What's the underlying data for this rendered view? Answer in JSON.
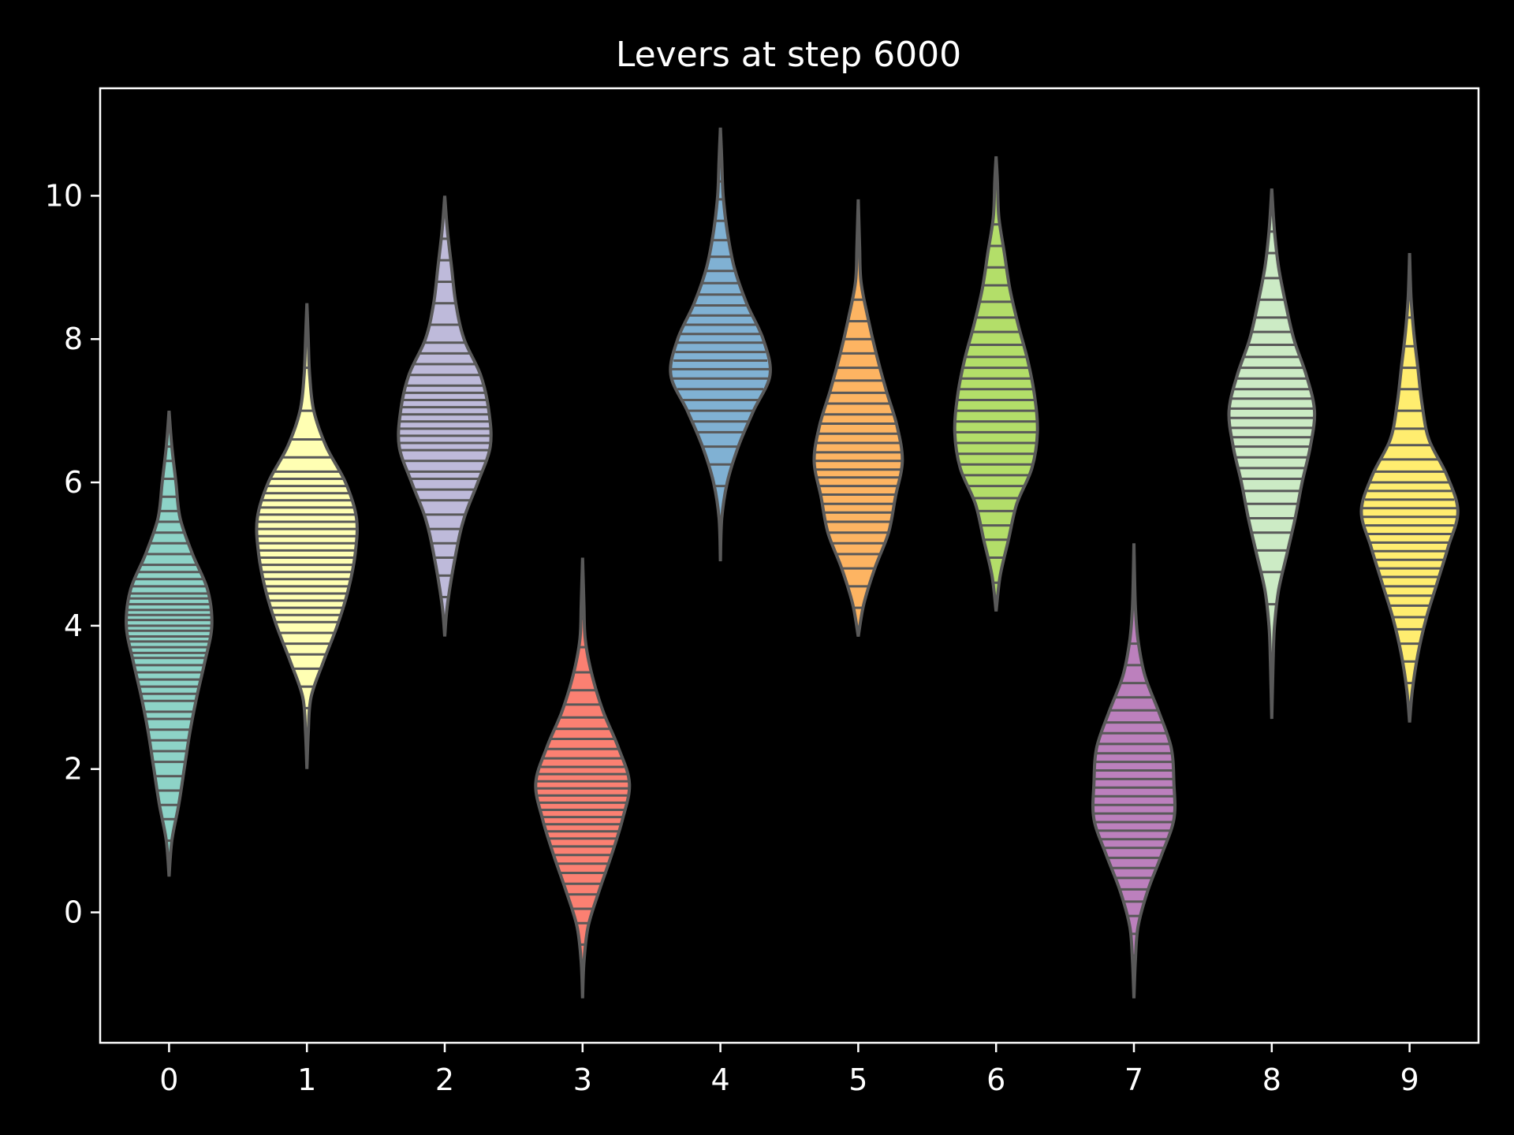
{
  "chart_data": {
    "type": "violin",
    "title": "Levers at step 6000",
    "xlabel": "",
    "ylabel": "",
    "ylim": [
      -1.82,
      11.5
    ],
    "yticks": [
      0,
      2,
      4,
      6,
      8,
      10
    ],
    "categories": [
      "0",
      "1",
      "2",
      "3",
      "4",
      "5",
      "6",
      "7",
      "8",
      "9"
    ],
    "grid": false,
    "legend": "none",
    "background": "#000000",
    "axis_color": "#ffffff",
    "body_color": "#595959",
    "colors": [
      "#8dd3c7",
      "#ffffb3",
      "#bebada",
      "#fb8072",
      "#80b1d3",
      "#fdb462",
      "#b3de69",
      "#bc80bd",
      "#ccebc5",
      "#ffed6f"
    ],
    "series": [
      {
        "category": "0",
        "min": 0.5,
        "max": 7.0,
        "profile": [
          [
            0.5,
            0
          ],
          [
            1.0,
            0.02
          ],
          [
            1.5,
            0.07
          ],
          [
            2.0,
            0.11
          ],
          [
            2.5,
            0.15
          ],
          [
            3.0,
            0.2
          ],
          [
            3.5,
            0.26
          ],
          [
            4.0,
            0.31
          ],
          [
            4.5,
            0.28
          ],
          [
            5.0,
            0.17
          ],
          [
            5.5,
            0.08
          ],
          [
            6.0,
            0.05
          ],
          [
            6.5,
            0.02
          ],
          [
            7.0,
            0
          ]
        ],
        "samples": [
          1.0,
          1.3,
          1.5,
          1.7,
          1.9,
          2.1,
          2.25,
          2.4,
          2.55,
          2.7,
          2.8,
          2.95,
          3.05,
          3.15,
          3.25,
          3.35,
          3.45,
          3.55,
          3.62,
          3.7,
          3.78,
          3.85,
          3.93,
          4.0,
          4.08,
          4.15,
          4.22,
          4.3,
          4.38,
          4.45,
          4.55,
          4.65,
          4.75,
          4.85,
          5.0,
          5.15,
          5.3,
          5.45,
          5.6,
          5.8,
          6.05,
          6.3,
          6.5
        ]
      },
      {
        "category": "1",
        "min": 2.0,
        "max": 8.5,
        "profile": [
          [
            2.0,
            0
          ],
          [
            2.5,
            0.01
          ],
          [
            3.0,
            0.03
          ],
          [
            3.5,
            0.12
          ],
          [
            4.0,
            0.22
          ],
          [
            4.5,
            0.3
          ],
          [
            5.0,
            0.35
          ],
          [
            5.5,
            0.36
          ],
          [
            6.0,
            0.28
          ],
          [
            6.5,
            0.14
          ],
          [
            7.0,
            0.05
          ],
          [
            7.5,
            0.02
          ],
          [
            8.0,
            0.01
          ],
          [
            8.5,
            0
          ]
        ],
        "samples": [
          2.85,
          3.15,
          3.4,
          3.6,
          3.75,
          3.9,
          4.05,
          4.15,
          4.25,
          4.35,
          4.45,
          4.55,
          4.65,
          4.75,
          4.85,
          4.95,
          5.05,
          5.15,
          5.25,
          5.35,
          5.45,
          5.55,
          5.65,
          5.75,
          5.85,
          5.95,
          6.05,
          6.15,
          6.35,
          6.6,
          7.0,
          7.6
        ]
      },
      {
        "category": "2",
        "min": 3.85,
        "max": 10.0,
        "profile": [
          [
            3.85,
            0
          ],
          [
            4.3,
            0.02
          ],
          [
            5.0,
            0.08
          ],
          [
            5.5,
            0.14
          ],
          [
            6.0,
            0.24
          ],
          [
            6.5,
            0.33
          ],
          [
            7.0,
            0.32
          ],
          [
            7.5,
            0.26
          ],
          [
            8.0,
            0.14
          ],
          [
            8.5,
            0.08
          ],
          [
            9.0,
            0.05
          ],
          [
            9.5,
            0.02
          ],
          [
            10.0,
            0
          ]
        ],
        "samples": [
          4.4,
          4.7,
          4.95,
          5.15,
          5.35,
          5.55,
          5.75,
          5.9,
          6.05,
          6.15,
          6.3,
          6.45,
          6.55,
          6.65,
          6.75,
          6.85,
          6.95,
          7.05,
          7.15,
          7.25,
          7.35,
          7.5,
          7.65,
          7.8,
          7.95,
          8.2,
          8.5,
          8.8,
          9.1,
          9.4
        ]
      },
      {
        "category": "3",
        "min": -1.2,
        "max": 4.95,
        "profile": [
          [
            -1.2,
            0
          ],
          [
            -0.7,
            0.01
          ],
          [
            -0.2,
            0.04
          ],
          [
            0.3,
            0.12
          ],
          [
            0.8,
            0.21
          ],
          [
            1.3,
            0.29
          ],
          [
            1.8,
            0.34
          ],
          [
            2.3,
            0.26
          ],
          [
            2.8,
            0.15
          ],
          [
            3.3,
            0.07
          ],
          [
            3.8,
            0.02
          ],
          [
            4.3,
            0.01
          ],
          [
            4.95,
            0
          ]
        ],
        "samples": [
          -0.45,
          -0.15,
          0.05,
          0.25,
          0.4,
          0.55,
          0.68,
          0.8,
          0.92,
          1.03,
          1.13,
          1.23,
          1.33,
          1.43,
          1.53,
          1.63,
          1.73,
          1.83,
          1.93,
          2.03,
          2.15,
          2.28,
          2.42,
          2.56,
          2.72,
          2.9,
          3.1,
          3.35,
          3.7,
          4.1,
          4.45
        ]
      },
      {
        "category": "4",
        "min": 4.9,
        "max": 10.95,
        "profile": [
          [
            4.9,
            0
          ],
          [
            5.5,
            0.01
          ],
          [
            6.0,
            0.05
          ],
          [
            6.5,
            0.13
          ],
          [
            7.0,
            0.24
          ],
          [
            7.5,
            0.36
          ],
          [
            8.0,
            0.31
          ],
          [
            8.5,
            0.19
          ],
          [
            9.0,
            0.1
          ],
          [
            9.5,
            0.05
          ],
          [
            10.0,
            0.02
          ],
          [
            10.5,
            0.01
          ],
          [
            10.95,
            0
          ]
        ],
        "samples": [
          5.5,
          5.95,
          6.25,
          6.5,
          6.7,
          6.85,
          7.0,
          7.15,
          7.3,
          7.45,
          7.58,
          7.7,
          7.82,
          7.95,
          8.07,
          8.2,
          8.33,
          8.47,
          8.62,
          8.78,
          8.95,
          9.15,
          9.38,
          9.65,
          9.95,
          10.2
        ]
      },
      {
        "category": "5",
        "min": 3.85,
        "max": 9.95,
        "profile": [
          [
            3.85,
            0
          ],
          [
            4.3,
            0.04
          ],
          [
            4.8,
            0.12
          ],
          [
            5.3,
            0.22
          ],
          [
            5.8,
            0.27
          ],
          [
            6.3,
            0.32
          ],
          [
            6.8,
            0.28
          ],
          [
            7.3,
            0.2
          ],
          [
            7.8,
            0.13
          ],
          [
            8.3,
            0.07
          ],
          [
            8.8,
            0.02
          ],
          [
            9.3,
            0.01
          ],
          [
            9.95,
            0
          ]
        ],
        "samples": [
          4.25,
          4.55,
          4.8,
          5.0,
          5.15,
          5.3,
          5.45,
          5.58,
          5.7,
          5.83,
          5.95,
          6.07,
          6.18,
          6.3,
          6.42,
          6.55,
          6.68,
          6.82,
          6.95,
          7.1,
          7.25,
          7.42,
          7.6,
          7.8,
          8.0,
          8.25,
          8.55
        ]
      },
      {
        "category": "6",
        "min": 4.2,
        "max": 10.55,
        "profile": [
          [
            4.2,
            0
          ],
          [
            4.7,
            0.03
          ],
          [
            5.2,
            0.09
          ],
          [
            5.7,
            0.15
          ],
          [
            6.2,
            0.26
          ],
          [
            6.7,
            0.3
          ],
          [
            7.2,
            0.28
          ],
          [
            7.7,
            0.23
          ],
          [
            8.2,
            0.16
          ],
          [
            8.7,
            0.1
          ],
          [
            9.2,
            0.06
          ],
          [
            9.7,
            0.02
          ],
          [
            10.2,
            0.01
          ],
          [
            10.55,
            0
          ]
        ],
        "samples": [
          4.6,
          4.95,
          5.2,
          5.4,
          5.6,
          5.78,
          5.95,
          6.1,
          6.25,
          6.4,
          6.55,
          6.7,
          6.85,
          7.0,
          7.15,
          7.3,
          7.45,
          7.6,
          7.75,
          7.92,
          8.1,
          8.3,
          8.52,
          8.75,
          9.0,
          9.3,
          9.6
        ]
      },
      {
        "category": "7",
        "min": -1.2,
        "max": 5.15,
        "profile": [
          [
            -1.2,
            0
          ],
          [
            -0.7,
            0.01
          ],
          [
            -0.2,
            0.03
          ],
          [
            0.3,
            0.1
          ],
          [
            0.8,
            0.2
          ],
          [
            1.3,
            0.29
          ],
          [
            1.8,
            0.29
          ],
          [
            2.3,
            0.27
          ],
          [
            2.8,
            0.18
          ],
          [
            3.3,
            0.08
          ],
          [
            3.8,
            0.03
          ],
          [
            4.3,
            0.01
          ],
          [
            5.15,
            0
          ]
        ],
        "samples": [
          -0.6,
          -0.3,
          -0.05,
          0.15,
          0.32,
          0.48,
          0.62,
          0.76,
          0.9,
          1.02,
          1.14,
          1.26,
          1.38,
          1.5,
          1.62,
          1.74,
          1.86,
          1.98,
          2.1,
          2.22,
          2.35,
          2.5,
          2.65,
          2.82,
          3.0,
          3.2,
          3.45,
          3.75
        ]
      },
      {
        "category": "8",
        "min": 2.7,
        "max": 10.1,
        "profile": [
          [
            2.7,
            0
          ],
          [
            3.5,
            0.01
          ],
          [
            4.0,
            0.02
          ],
          [
            4.5,
            0.05
          ],
          [
            5.0,
            0.11
          ],
          [
            5.5,
            0.17
          ],
          [
            6.0,
            0.22
          ],
          [
            6.5,
            0.28
          ],
          [
            7.0,
            0.31
          ],
          [
            7.5,
            0.25
          ],
          [
            8.0,
            0.16
          ],
          [
            8.5,
            0.1
          ],
          [
            9.0,
            0.05
          ],
          [
            9.5,
            0.02
          ],
          [
            10.1,
            0
          ]
        ],
        "samples": [
          4.3,
          4.75,
          5.05,
          5.3,
          5.5,
          5.7,
          5.88,
          6.05,
          6.2,
          6.35,
          6.5,
          6.63,
          6.76,
          6.9,
          7.03,
          7.17,
          7.3,
          7.45,
          7.6,
          7.75,
          7.92,
          8.1,
          8.3,
          8.55,
          8.85,
          9.2,
          9.5
        ]
      },
      {
        "category": "9",
        "min": 2.65,
        "max": 9.2,
        "profile": [
          [
            2.65,
            0
          ],
          [
            3.1,
            0.02
          ],
          [
            3.6,
            0.06
          ],
          [
            4.1,
            0.12
          ],
          [
            4.6,
            0.2
          ],
          [
            5.1,
            0.28
          ],
          [
            5.6,
            0.35
          ],
          [
            6.1,
            0.27
          ],
          [
            6.6,
            0.14
          ],
          [
            7.1,
            0.09
          ],
          [
            7.6,
            0.06
          ],
          [
            8.1,
            0.03
          ],
          [
            8.6,
            0.01
          ],
          [
            9.2,
            0
          ]
        ],
        "samples": [
          3.2,
          3.5,
          3.75,
          3.95,
          4.12,
          4.28,
          4.42,
          4.55,
          4.68,
          4.8,
          4.92,
          5.04,
          5.16,
          5.28,
          5.4,
          5.52,
          5.64,
          5.76,
          5.88,
          6.0,
          6.15,
          6.32,
          6.52,
          6.75,
          7.0,
          7.3,
          7.6,
          7.9,
          8.3
        ]
      }
    ]
  }
}
